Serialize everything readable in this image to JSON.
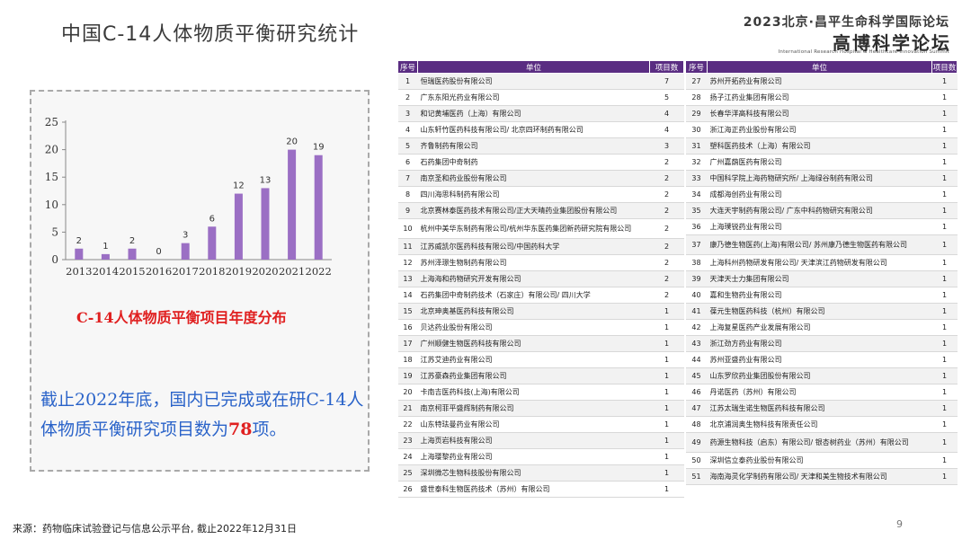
{
  "header": {
    "title": "中国C-14人体物质平衡研究统计",
    "forum_top": "2023北京·昌平生命科学国际论坛",
    "forum_main": "高博科学论坛",
    "forum_sub": "International Research Hospital & Healthcare Innovation Summit"
  },
  "chart_data": {
    "type": "bar",
    "categories": [
      "2013",
      "2014",
      "2015",
      "2016",
      "2017",
      "2018",
      "2019",
      "2020",
      "2021",
      "2022"
    ],
    "values": [
      2,
      1,
      2,
      0,
      3,
      6,
      12,
      13,
      20,
      19
    ],
    "ylim": [
      0,
      25
    ],
    "yticks": [
      0,
      5,
      10,
      15,
      20,
      25
    ],
    "title": "C-14人体物质平衡项目年度分布",
    "bar_color": "#9b6fc4",
    "grid": false
  },
  "summary": {
    "before": "截止2022年底，国内已完成或在研C-14人体物质平衡研究项目数为",
    "number": "78",
    "after": "项。"
  },
  "table": {
    "headers": {
      "seq": "序号",
      "unit": "单位",
      "count": "项目数"
    },
    "left": [
      {
        "no": "1",
        "unit": "恒瑞医药股份有限公司",
        "count": "7"
      },
      {
        "no": "2",
        "unit": "广东东阳光药业有限公司",
        "count": "5"
      },
      {
        "no": "3",
        "unit": "和记黄埔医药（上海）有限公司",
        "count": "4"
      },
      {
        "no": "4",
        "unit": "山东轩竹医药科技有限公司/ 北京四环制药有限公司",
        "count": "4"
      },
      {
        "no": "5",
        "unit": "齐鲁制药有限公司",
        "count": "3"
      },
      {
        "no": "6",
        "unit": "石药集团中奇制药",
        "count": "2"
      },
      {
        "no": "7",
        "unit": "南京圣和药业股份有限公司",
        "count": "2"
      },
      {
        "no": "8",
        "unit": "四川海思科制药有限公司",
        "count": "2"
      },
      {
        "no": "9",
        "unit": "北京赛林泰医药技术有限公司/正大天晴药业集团股份有限公司",
        "count": "2"
      },
      {
        "no": "10",
        "unit": "杭州中美华东制药有限公司/杭州华东医药集团新药研究院有限公司",
        "count": "2"
      },
      {
        "no": "11",
        "unit": "江苏威凯尔医药科技有限公司/中国药科大学",
        "count": "2"
      },
      {
        "no": "12",
        "unit": "苏州泽璟生物制药有限公司",
        "count": "2"
      },
      {
        "no": "13",
        "unit": "上海海和药物研究开发有限公司",
        "count": "2"
      },
      {
        "no": "14",
        "unit": "石药集团中奇制药技术（石家庄）有限公司/ 四川大学",
        "count": "2"
      },
      {
        "no": "15",
        "unit": "北京珅奥基医药科技有限公司",
        "count": "1"
      },
      {
        "no": "16",
        "unit": "贝达药业股份有限公司",
        "count": "1"
      },
      {
        "no": "17",
        "unit": "广州顺健生物医药科技有限公司",
        "count": "1"
      },
      {
        "no": "18",
        "unit": "江苏艾迪药业有限公司",
        "count": "1"
      },
      {
        "no": "19",
        "unit": "江苏豪森药业集团有限公司",
        "count": "1"
      },
      {
        "no": "20",
        "unit": "卡南吉医药科技(上海)有限公司",
        "count": "1"
      },
      {
        "no": "21",
        "unit": "南京柯菲平盛辉制药有限公司",
        "count": "1"
      },
      {
        "no": "22",
        "unit": "山东特珐曼药业有限公司",
        "count": "1"
      },
      {
        "no": "23",
        "unit": "上海页岩科技有限公司",
        "count": "1"
      },
      {
        "no": "24",
        "unit": "上海璎黎药业有限公司",
        "count": "1"
      },
      {
        "no": "25",
        "unit": "深圳微芯生物科技股份有限公司",
        "count": "1"
      },
      {
        "no": "26",
        "unit": "盛世泰科生物医药技术（苏州）有限公司",
        "count": "1"
      }
    ],
    "right": [
      {
        "no": "27",
        "unit": "苏州开拓药业有限公司",
        "count": "1"
      },
      {
        "no": "28",
        "unit": "扬子江药业集团有限公司",
        "count": "1"
      },
      {
        "no": "29",
        "unit": "长春华洋高科技有限公司",
        "count": "1"
      },
      {
        "no": "30",
        "unit": "浙江海正药业股份有限公司",
        "count": "1"
      },
      {
        "no": "31",
        "unit": "塑科医药技术（上海）有限公司",
        "count": "1"
      },
      {
        "no": "32",
        "unit": "广州嘉蓢医药有限公司",
        "count": "1"
      },
      {
        "no": "33",
        "unit": "中国科学院上海药物研究所/ 上海绿谷制药有限公司",
        "count": "1"
      },
      {
        "no": "34",
        "unit": "成都海创药业有限公司",
        "count": "1"
      },
      {
        "no": "35",
        "unit": "大连天宇制药有限公司/ 广东中科药物研究有限公司",
        "count": "1"
      },
      {
        "no": "36",
        "unit": "上海璞锐药业有限公司",
        "count": "1"
      },
      {
        "no": "37",
        "unit": "康乃德生物医药(上海)有限公司/ 苏州康乃德生物医药有限公司",
        "count": "1"
      },
      {
        "no": "38",
        "unit": "上海科州药物研发有限公司/ 天津滨江药物研发有限公司",
        "count": "1"
      },
      {
        "no": "39",
        "unit": "天津天士力集团有限公司",
        "count": "1"
      },
      {
        "no": "40",
        "unit": "嘉和生物药业有限公司",
        "count": "1"
      },
      {
        "no": "41",
        "unit": "葆元生物医药科技（杭州）有限公司",
        "count": "1"
      },
      {
        "no": "42",
        "unit": "上海复星医药产业发展有限公司",
        "count": "1"
      },
      {
        "no": "43",
        "unit": "浙江劲方药业有限公司",
        "count": "1"
      },
      {
        "no": "44",
        "unit": "苏州亚盛药业有限公司",
        "count": "1"
      },
      {
        "no": "45",
        "unit": "山东罗欣药业集团股份有限公司",
        "count": "1"
      },
      {
        "no": "46",
        "unit": "丹诺医药（苏州）有限公司",
        "count": "1"
      },
      {
        "no": "47",
        "unit": "江苏太瑞生诺生物医药科技有限公司",
        "count": "1"
      },
      {
        "no": "48",
        "unit": "北京浦润奥生物科技有限责任公司",
        "count": "1"
      },
      {
        "no": "49",
        "unit": "药源生物科技（启东）有限公司/ 银杏树药业（苏州）有限公司",
        "count": "1"
      },
      {
        "no": "50",
        "unit": "深圳信立泰药业股份有限公司",
        "count": "1"
      },
      {
        "no": "51",
        "unit": "海南海灵化学制药有限公司/ 天津和美生物技术有限公司",
        "count": "1"
      }
    ]
  },
  "footer": {
    "source": "来源：药物临床试验登记与信息公示平台, 截止2022年12月31日",
    "page": "9"
  }
}
